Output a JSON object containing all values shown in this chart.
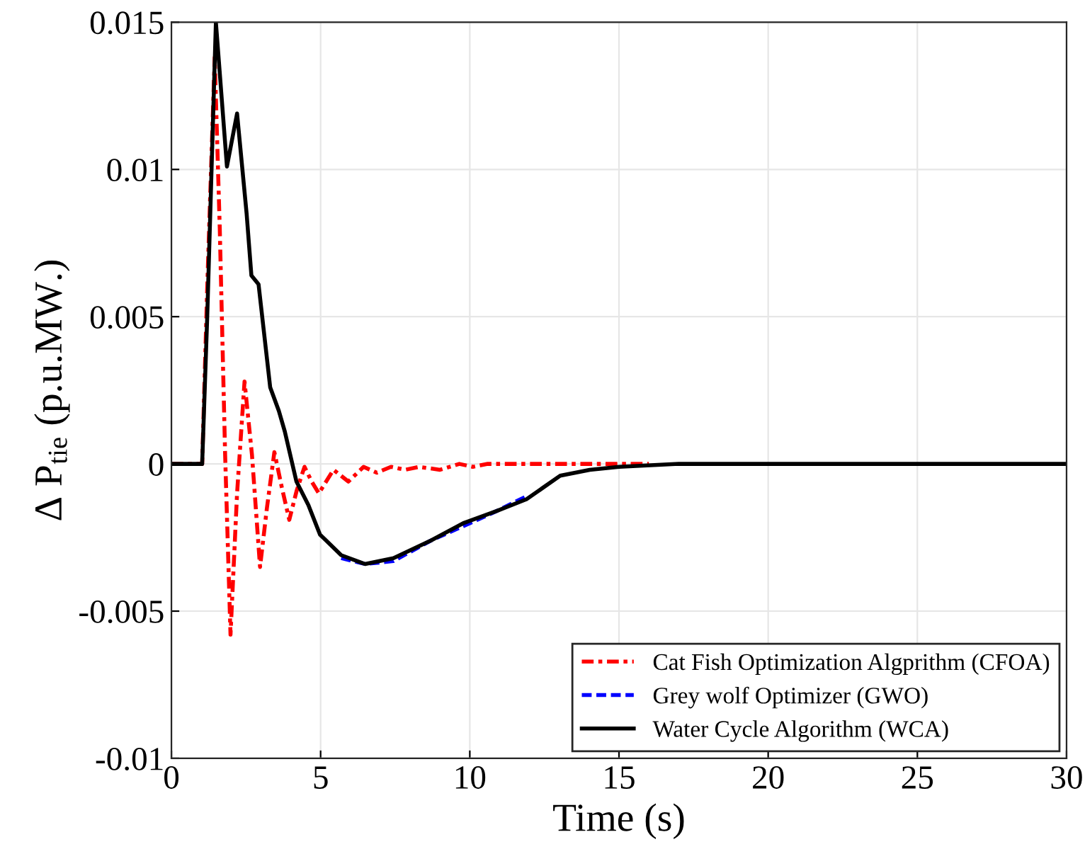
{
  "chart_data": {
    "type": "line",
    "xlabel": "Time (s)",
    "ylabel": "Δ P$_{tie}$ (p.u.MW.)",
    "xlim": [
      0,
      30
    ],
    "xticks": [
      0,
      5,
      10,
      15,
      20,
      25,
      30
    ],
    "ylim": [
      -0.01,
      0.015
    ],
    "yticks": [
      -0.01,
      -0.005,
      0,
      0.005,
      0.01,
      0.015
    ],
    "grid": true,
    "legend": "bottom right",
    "marker": "none",
    "series": [
      {
        "name": "Cat Fish Optimization Algprithm (CFOA)",
        "color": "#ff0000",
        "line_style": "dashdot",
        "x": [
          0,
          1.03,
          1.2,
          1.45,
          1.62,
          1.8,
          1.98,
          2.2,
          2.45,
          2.7,
          2.97,
          3.2,
          3.45,
          3.7,
          3.95,
          4.2,
          4.46,
          4.7,
          4.94,
          5.43,
          5.93,
          6.44,
          6.88,
          7.36,
          7.83,
          8.3,
          9.0,
          9.65,
          10.1,
          10.6,
          12,
          14,
          16
        ],
        "values": [
          0,
          0,
          0.006,
          0.0138,
          0.008,
          0.0003,
          -0.0058,
          -0.001,
          0.0028,
          0.0003,
          -0.0035,
          -0.0015,
          0.0004,
          -0.0008,
          -0.0019,
          -0.0009,
          -0.0001,
          -0.0006,
          -0.001,
          -0.0002,
          -0.0006,
          -0.0001,
          -0.0003,
          -0.0001,
          -0.0002,
          -0.0001,
          -0.0002,
          0,
          -0.0001,
          0,
          0,
          0,
          0
        ]
      },
      {
        "name": "Grey wolf Optimizer (GWO)",
        "color": "#0000ff",
        "line_style": "dashed",
        "x": [
          5.69,
          6.49,
          7.44,
          8.7,
          9.81,
          10.9,
          11.9
        ],
        "values": [
          -0.0032,
          -0.0034,
          -0.0033,
          -0.0026,
          -0.0021,
          -0.0016,
          -0.0011
        ]
      },
      {
        "name": "Water Cycle Algorithm (WCA)",
        "color": "#000000",
        "line_style": "solid",
        "x": [
          0,
          1.03,
          1.2,
          1.49,
          1.86,
          2.2,
          2.52,
          2.68,
          2.92,
          3.31,
          3.6,
          3.8,
          4.19,
          4.59,
          4.98,
          5.69,
          6.49,
          7.44,
          8.7,
          9.81,
          10.9,
          11.9,
          13.03,
          14.02,
          15.0,
          17,
          20,
          25,
          30
        ],
        "values": [
          0,
          0,
          0.005,
          0.015,
          0.0101,
          0.0119,
          0.0085,
          0.0064,
          0.0061,
          0.0026,
          0.0018,
          0.0011,
          -0.0006,
          -0.0014,
          -0.0024,
          -0.0031,
          -0.0034,
          -0.0032,
          -0.0026,
          -0.002,
          -0.0016,
          -0.0012,
          -0.0004,
          -0.0002,
          -0.0001,
          0,
          0,
          0,
          0
        ]
      }
    ]
  }
}
